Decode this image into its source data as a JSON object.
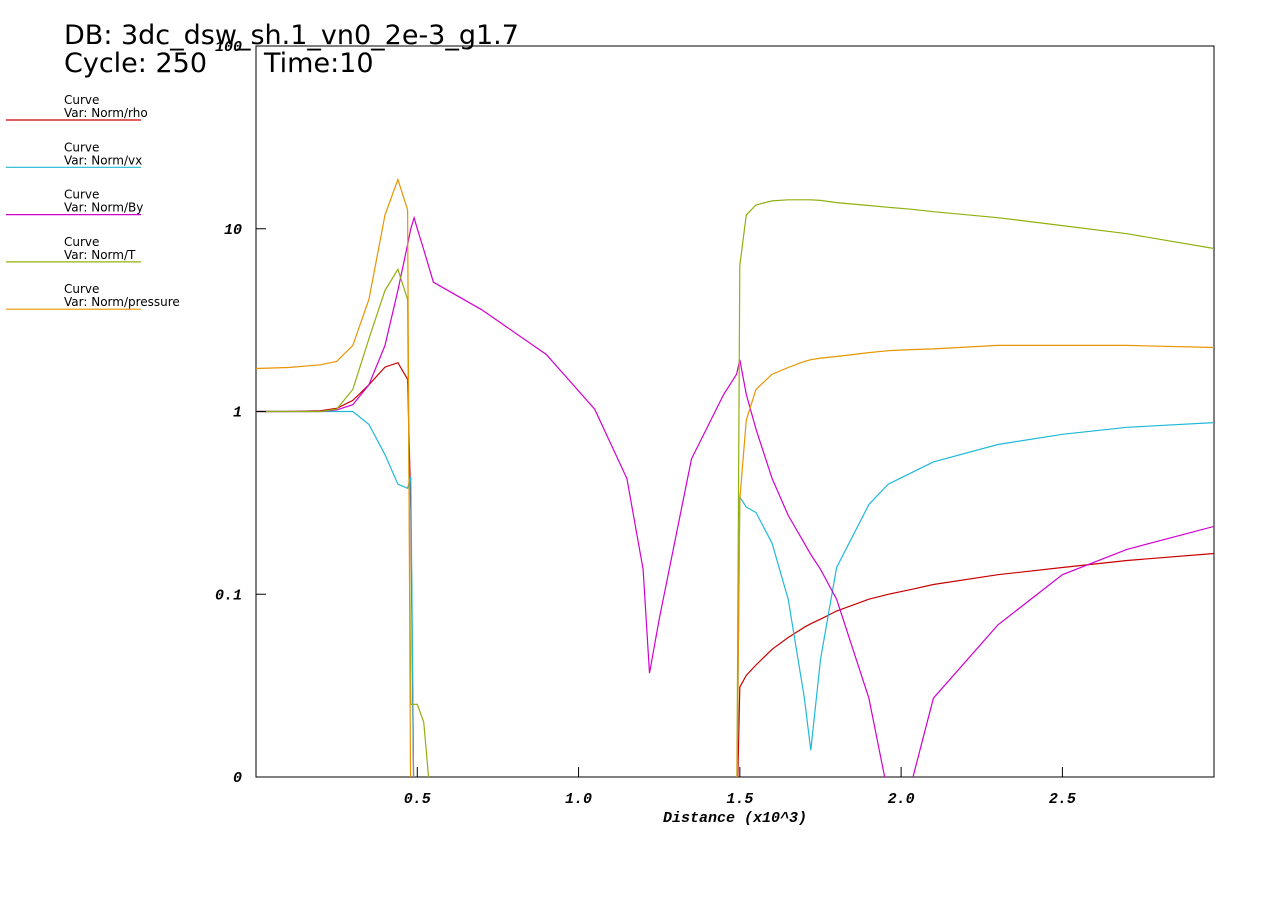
{
  "chart_data": {
    "type": "line",
    "db_label": "DB: 3dc_dsw_sh.1_vn0_2e-3_g1.7",
    "cycle_label": "Cycle: 250",
    "time_label": "Time:10",
    "x_label": "Distance (x10^3)",
    "log_y": true,
    "xlim": [
      0,
      2.97
    ],
    "ylim": [
      0.01,
      100
    ],
    "xticks": [
      0.5,
      {
        "value": 1,
        "label": "1.0"
      },
      1.5,
      {
        "value": 2,
        "label": "2.0"
      },
      2.5
    ],
    "yticks": [
      {
        "value": 0.01,
        "label": "0"
      },
      0.1,
      1,
      10,
      100
    ],
    "x": [
      0,
      0.1,
      0.2,
      0.25,
      0.3,
      0.35,
      0.4,
      0.44,
      0.47,
      0.48,
      0.49,
      0.5,
      0.52,
      0.55,
      0.7,
      0.9,
      1.05,
      1.15,
      1.2,
      1.22,
      1.25,
      1.35,
      1.45,
      1.49,
      1.5,
      1.52,
      1.55,
      1.6,
      1.65,
      1.7,
      1.72,
      1.75,
      1.8,
      1.9,
      1.96,
      2.03,
      2.1,
      2.3,
      2.5,
      2.7,
      2.97
    ],
    "series": [
      {
        "label": "Curve",
        "name": "Var: Norm/rho",
        "color": "#c80000",
        "values": [
          1,
          1,
          1.01,
          1.04,
          1.15,
          1.4,
          1.75,
          1.85,
          1.5,
          0.3,
          0.005,
          null,
          null,
          null,
          null,
          null,
          null,
          null,
          null,
          null,
          null,
          null,
          null,
          0.005,
          0.031,
          0.036,
          0.041,
          0.05,
          0.058,
          0.066,
          0.069,
          0.073,
          0.081,
          0.094,
          0.1,
          0.106,
          0.113,
          0.128,
          0.14,
          0.153,
          0.167
        ]
      },
      {
        "label": "Curve",
        "name": "Var: Norm/vx",
        "color": "#20b8d8",
        "values": [
          1,
          1,
          1,
          1,
          1,
          0.85,
          0.58,
          0.4,
          0.38,
          0.44,
          0.005,
          null,
          null,
          null,
          null,
          null,
          null,
          null,
          null,
          null,
          null,
          null,
          null,
          0.005,
          0.34,
          0.3,
          0.28,
          0.19,
          0.094,
          0.027,
          0.014,
          0.044,
          0.14,
          0.31,
          0.4,
          0.46,
          0.53,
          0.66,
          0.75,
          0.82,
          0.87
        ]
      },
      {
        "label": "Curve",
        "name": "Var: Norm/By",
        "color": "#d000d0",
        "values": [
          1,
          1,
          1,
          1.02,
          1.09,
          1.4,
          2.3,
          4.6,
          8.2,
          10,
          11.5,
          10,
          7.7,
          5.1,
          3.6,
          2.05,
          1.03,
          0.43,
          0.137,
          0.037,
          0.073,
          0.55,
          1.24,
          1.6,
          1.92,
          1.24,
          0.8,
          0.43,
          0.27,
          0.19,
          0.165,
          0.137,
          0.094,
          0.027,
          0.008,
          0.009,
          0.027,
          0.068,
          0.128,
          0.176,
          0.235
        ]
      },
      {
        "label": "Curve",
        "name": "Var: Norm/T",
        "color": "#90b010",
        "values": [
          1,
          1,
          1,
          1.03,
          1.32,
          2.5,
          4.6,
          6,
          4.1,
          0.025,
          0.025,
          0.025,
          0.02,
          0.005,
          null,
          null,
          null,
          null,
          null,
          null,
          null,
          null,
          null,
          0.005,
          6.3,
          11.9,
          13.5,
          14.2,
          14.4,
          14.4,
          14.4,
          14.3,
          13.9,
          13.4,
          13.1,
          12.8,
          12.4,
          11.5,
          10.4,
          9.4,
          7.8
        ]
      },
      {
        "label": "Curve",
        "name": "Var: Norm/pressure",
        "color": "#e89400",
        "values": [
          1.72,
          1.74,
          1.8,
          1.88,
          2.3,
          4.1,
          11.9,
          18.6,
          12.7,
          0.005,
          null,
          null,
          null,
          null,
          null,
          null,
          null,
          null,
          null,
          null,
          null,
          null,
          null,
          0.005,
          0.33,
          0.9,
          1.32,
          1.6,
          1.74,
          1.88,
          1.92,
          1.96,
          2.0,
          2.1,
          2.15,
          2.18,
          2.2,
          2.3,
          2.3,
          2.3,
          2.24
        ]
      }
    ]
  }
}
